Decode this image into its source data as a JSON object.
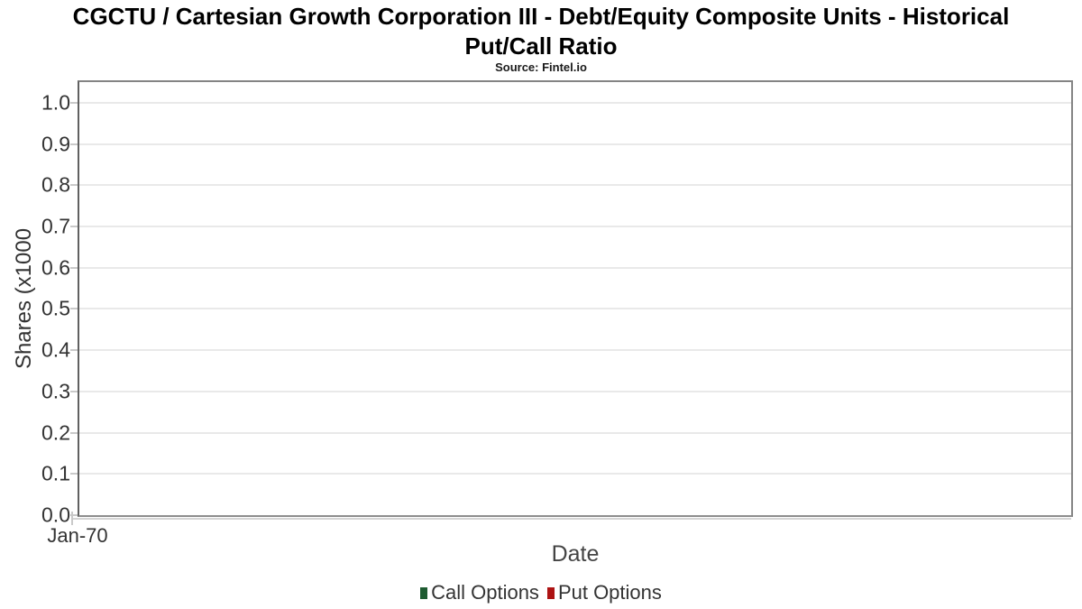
{
  "header": {
    "title_line1": "CGCTU / Cartesian Growth Corporation III - Debt/Equity Composite Units - Historical",
    "title_line2": "Put/Call Ratio",
    "subtitle": "Source: Fintel.io"
  },
  "chart_data": {
    "type": "line",
    "title": "CGCTU / Cartesian Growth Corporation III - Debt/Equity Composite Units - Historical Put/Call Ratio",
    "subtitle": "Source: Fintel.io",
    "xlabel": "Date",
    "ylabel": "Shares (x1000",
    "x_tick_labels": [
      "Jan-70"
    ],
    "yticks": [
      "0.0",
      "0.1",
      "0.2",
      "0.3",
      "0.4",
      "0.5",
      "0.6",
      "0.7",
      "0.8",
      "0.9",
      "1.0"
    ],
    "ylim": [
      0,
      1.05
    ],
    "grid": true,
    "legend_position": "bottom",
    "series": [
      {
        "name": "Call Options",
        "color": "#1e5b31",
        "values": []
      },
      {
        "name": "Put Options",
        "color": "#ad1313",
        "values": []
      }
    ]
  }
}
